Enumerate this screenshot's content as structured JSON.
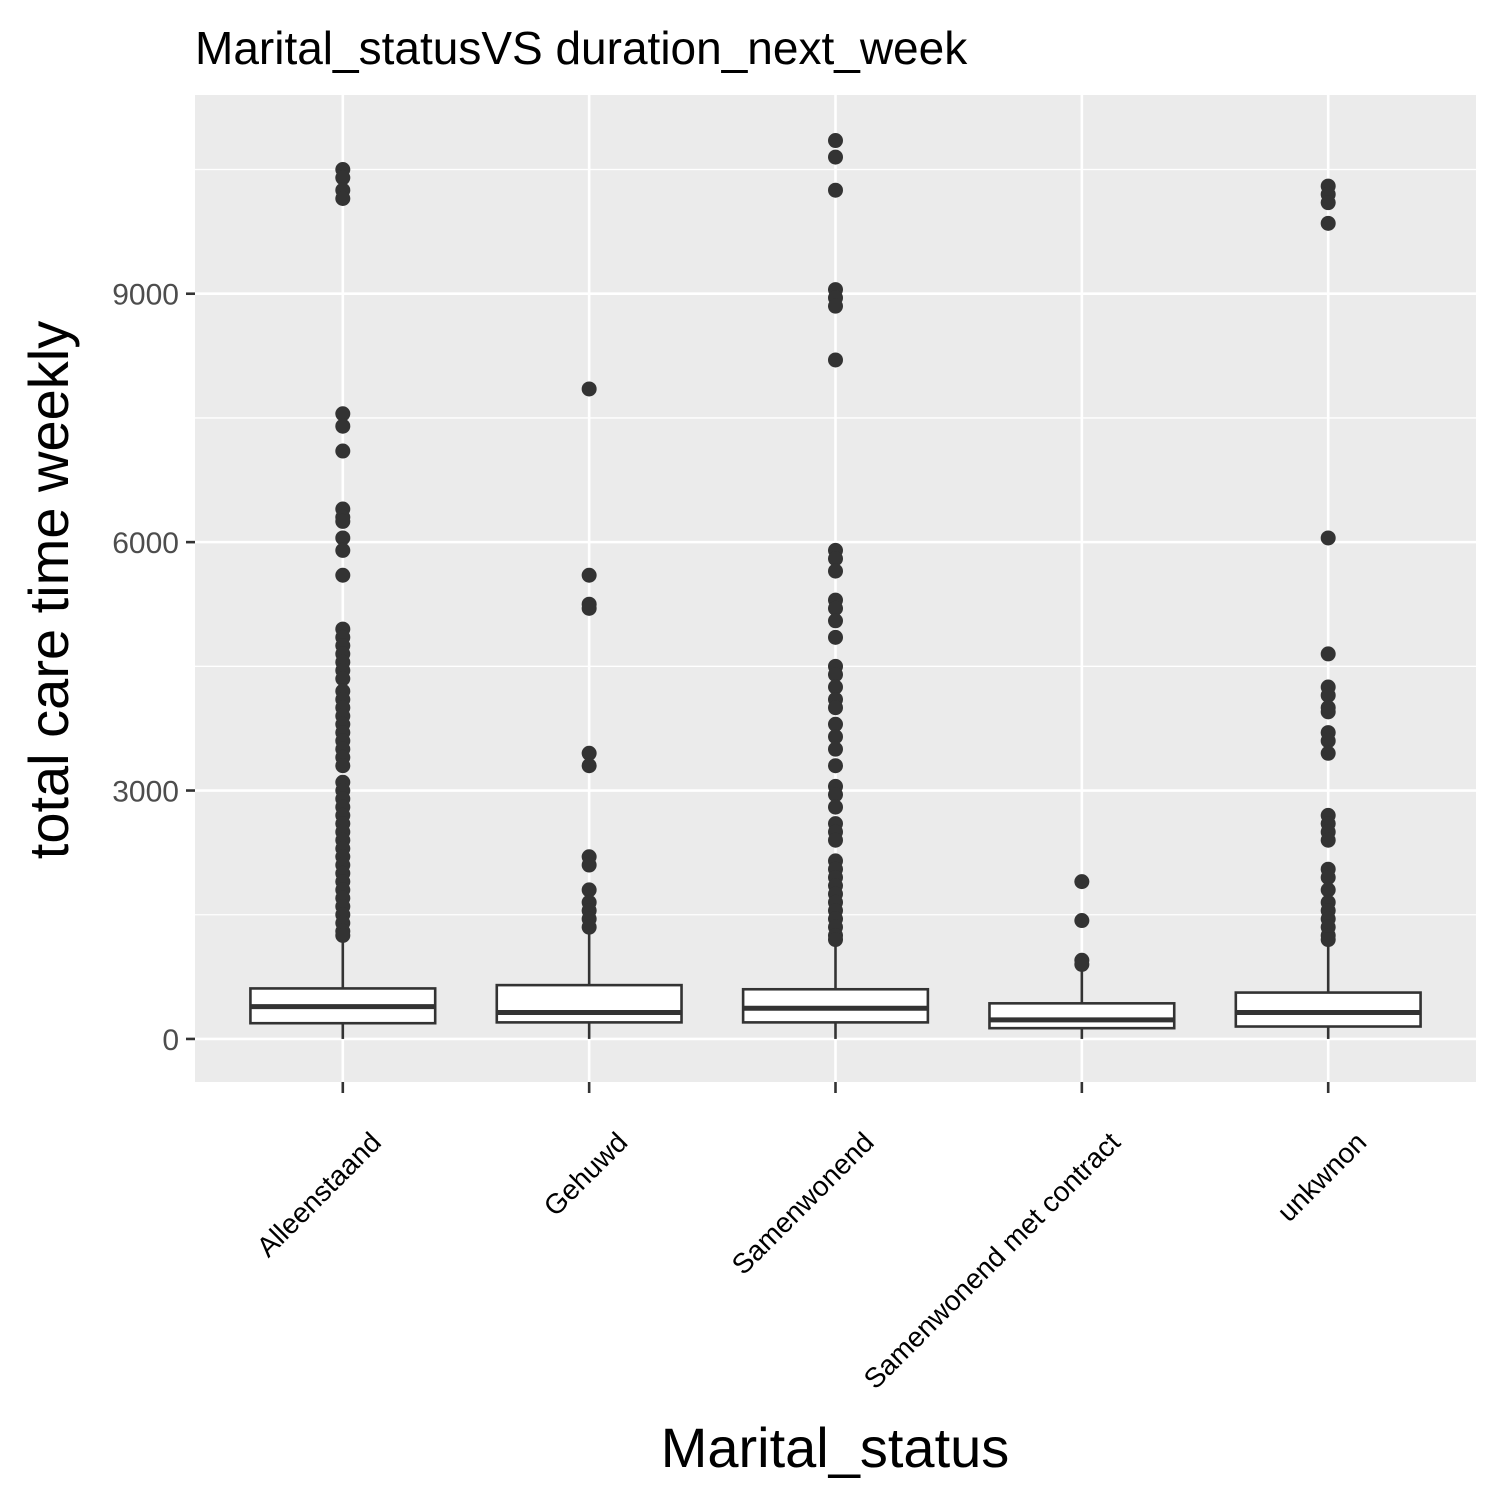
{
  "chart_data": {
    "type": "boxplot",
    "title": "Marital_statusVS duration_next_week",
    "xlabel": "Marital_status",
    "ylabel": "total care time weekly",
    "ylim": [
      -520,
      11400
    ],
    "yticks": [
      0,
      3000,
      6000,
      9000
    ],
    "y_tick_labels": [
      "0",
      "3000",
      "6000",
      "9000"
    ],
    "grid": true,
    "legend": "none",
    "colors": {
      "panel": "#ebebeb",
      "grid": "#ffffff",
      "box_fill": "#ffffff",
      "box_line": "#333333",
      "outlier": "#333333"
    },
    "categories": [
      "Alleenstaand",
      "Gehuwd",
      "Samenwonend",
      "Samenwonend met contract",
      "unkwnon"
    ],
    "boxes": [
      {
        "category": "Alleenstaand",
        "whisker_low": 0,
        "q1": 190,
        "median": 390,
        "q3": 610,
        "whisker_high": 1230,
        "outliers": [
          10500,
          10400,
          10250,
          10150,
          7550,
          7400,
          7100,
          6400,
          6300,
          6250,
          6050,
          5900,
          5600,
          4950,
          4850,
          4750,
          4650,
          4550,
          4450,
          4350,
          4200,
          4100,
          4000,
          3900,
          3800,
          3700,
          3600,
          3500,
          3400,
          3300,
          3100,
          3000,
          2900,
          2800,
          2700,
          2600,
          2500,
          2400,
          2300,
          2200,
          2100,
          2000,
          1900,
          1800,
          1700,
          1600,
          1500,
          1400,
          1300,
          1250
        ]
      },
      {
        "category": "Gehuwd",
        "whisker_low": 0,
        "q1": 200,
        "median": 320,
        "q3": 650,
        "whisker_high": 1300,
        "outliers": [
          7850,
          5600,
          5250,
          5200,
          3450,
          3300,
          2200,
          2100,
          1800,
          1650,
          1550,
          1450,
          1350
        ]
      },
      {
        "category": "Samenwonend",
        "whisker_low": 0,
        "q1": 200,
        "median": 370,
        "q3": 600,
        "whisker_high": 1180,
        "outliers": [
          10850,
          10650,
          10250,
          9050,
          8950,
          8850,
          8200,
          5900,
          5800,
          5650,
          5300,
          5200,
          5050,
          4850,
          4500,
          4400,
          4250,
          4100,
          4000,
          3800,
          3650,
          3500,
          3300,
          3050,
          2950,
          2800,
          2600,
          2500,
          2400,
          2150,
          2050,
          1950,
          1850,
          1750,
          1650,
          1550,
          1450,
          1350,
          1250,
          1200
        ]
      },
      {
        "category": "Samenwonend met contract",
        "whisker_low": 0,
        "q1": 130,
        "median": 230,
        "q3": 430,
        "whisker_high": 870,
        "outliers": [
          1900,
          1430,
          950,
          900
        ]
      },
      {
        "category": "unkwnon",
        "whisker_low": 0,
        "q1": 150,
        "median": 320,
        "q3": 560,
        "whisker_high": 1150,
        "outliers": [
          10300,
          10200,
          10100,
          9850,
          6050,
          4650,
          4250,
          4150,
          4000,
          3950,
          3700,
          3600,
          3450,
          2700,
          2600,
          2500,
          2400,
          2050,
          1950,
          1800,
          1650,
          1550,
          1450,
          1350,
          1250,
          1200
        ]
      }
    ]
  }
}
